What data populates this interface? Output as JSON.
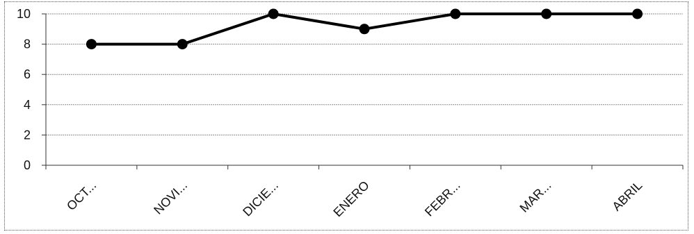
{
  "chart_data": {
    "type": "line",
    "categories": [
      "OCT...",
      "NOVI...",
      "DICIE...",
      "ENERO",
      "FEBR...",
      "MAR...",
      "ABRIL"
    ],
    "series": [
      {
        "values": [
          8,
          8,
          10,
          9,
          10,
          10,
          10
        ]
      }
    ],
    "y_ticks": [
      "0",
      "2",
      "4",
      "6",
      "8",
      "10"
    ],
    "ylim": [
      0,
      10
    ],
    "grid": true,
    "legend": "none",
    "colors": {
      "line": "#000000",
      "marker": "#000000",
      "grid": "#8a8a8a"
    }
  }
}
